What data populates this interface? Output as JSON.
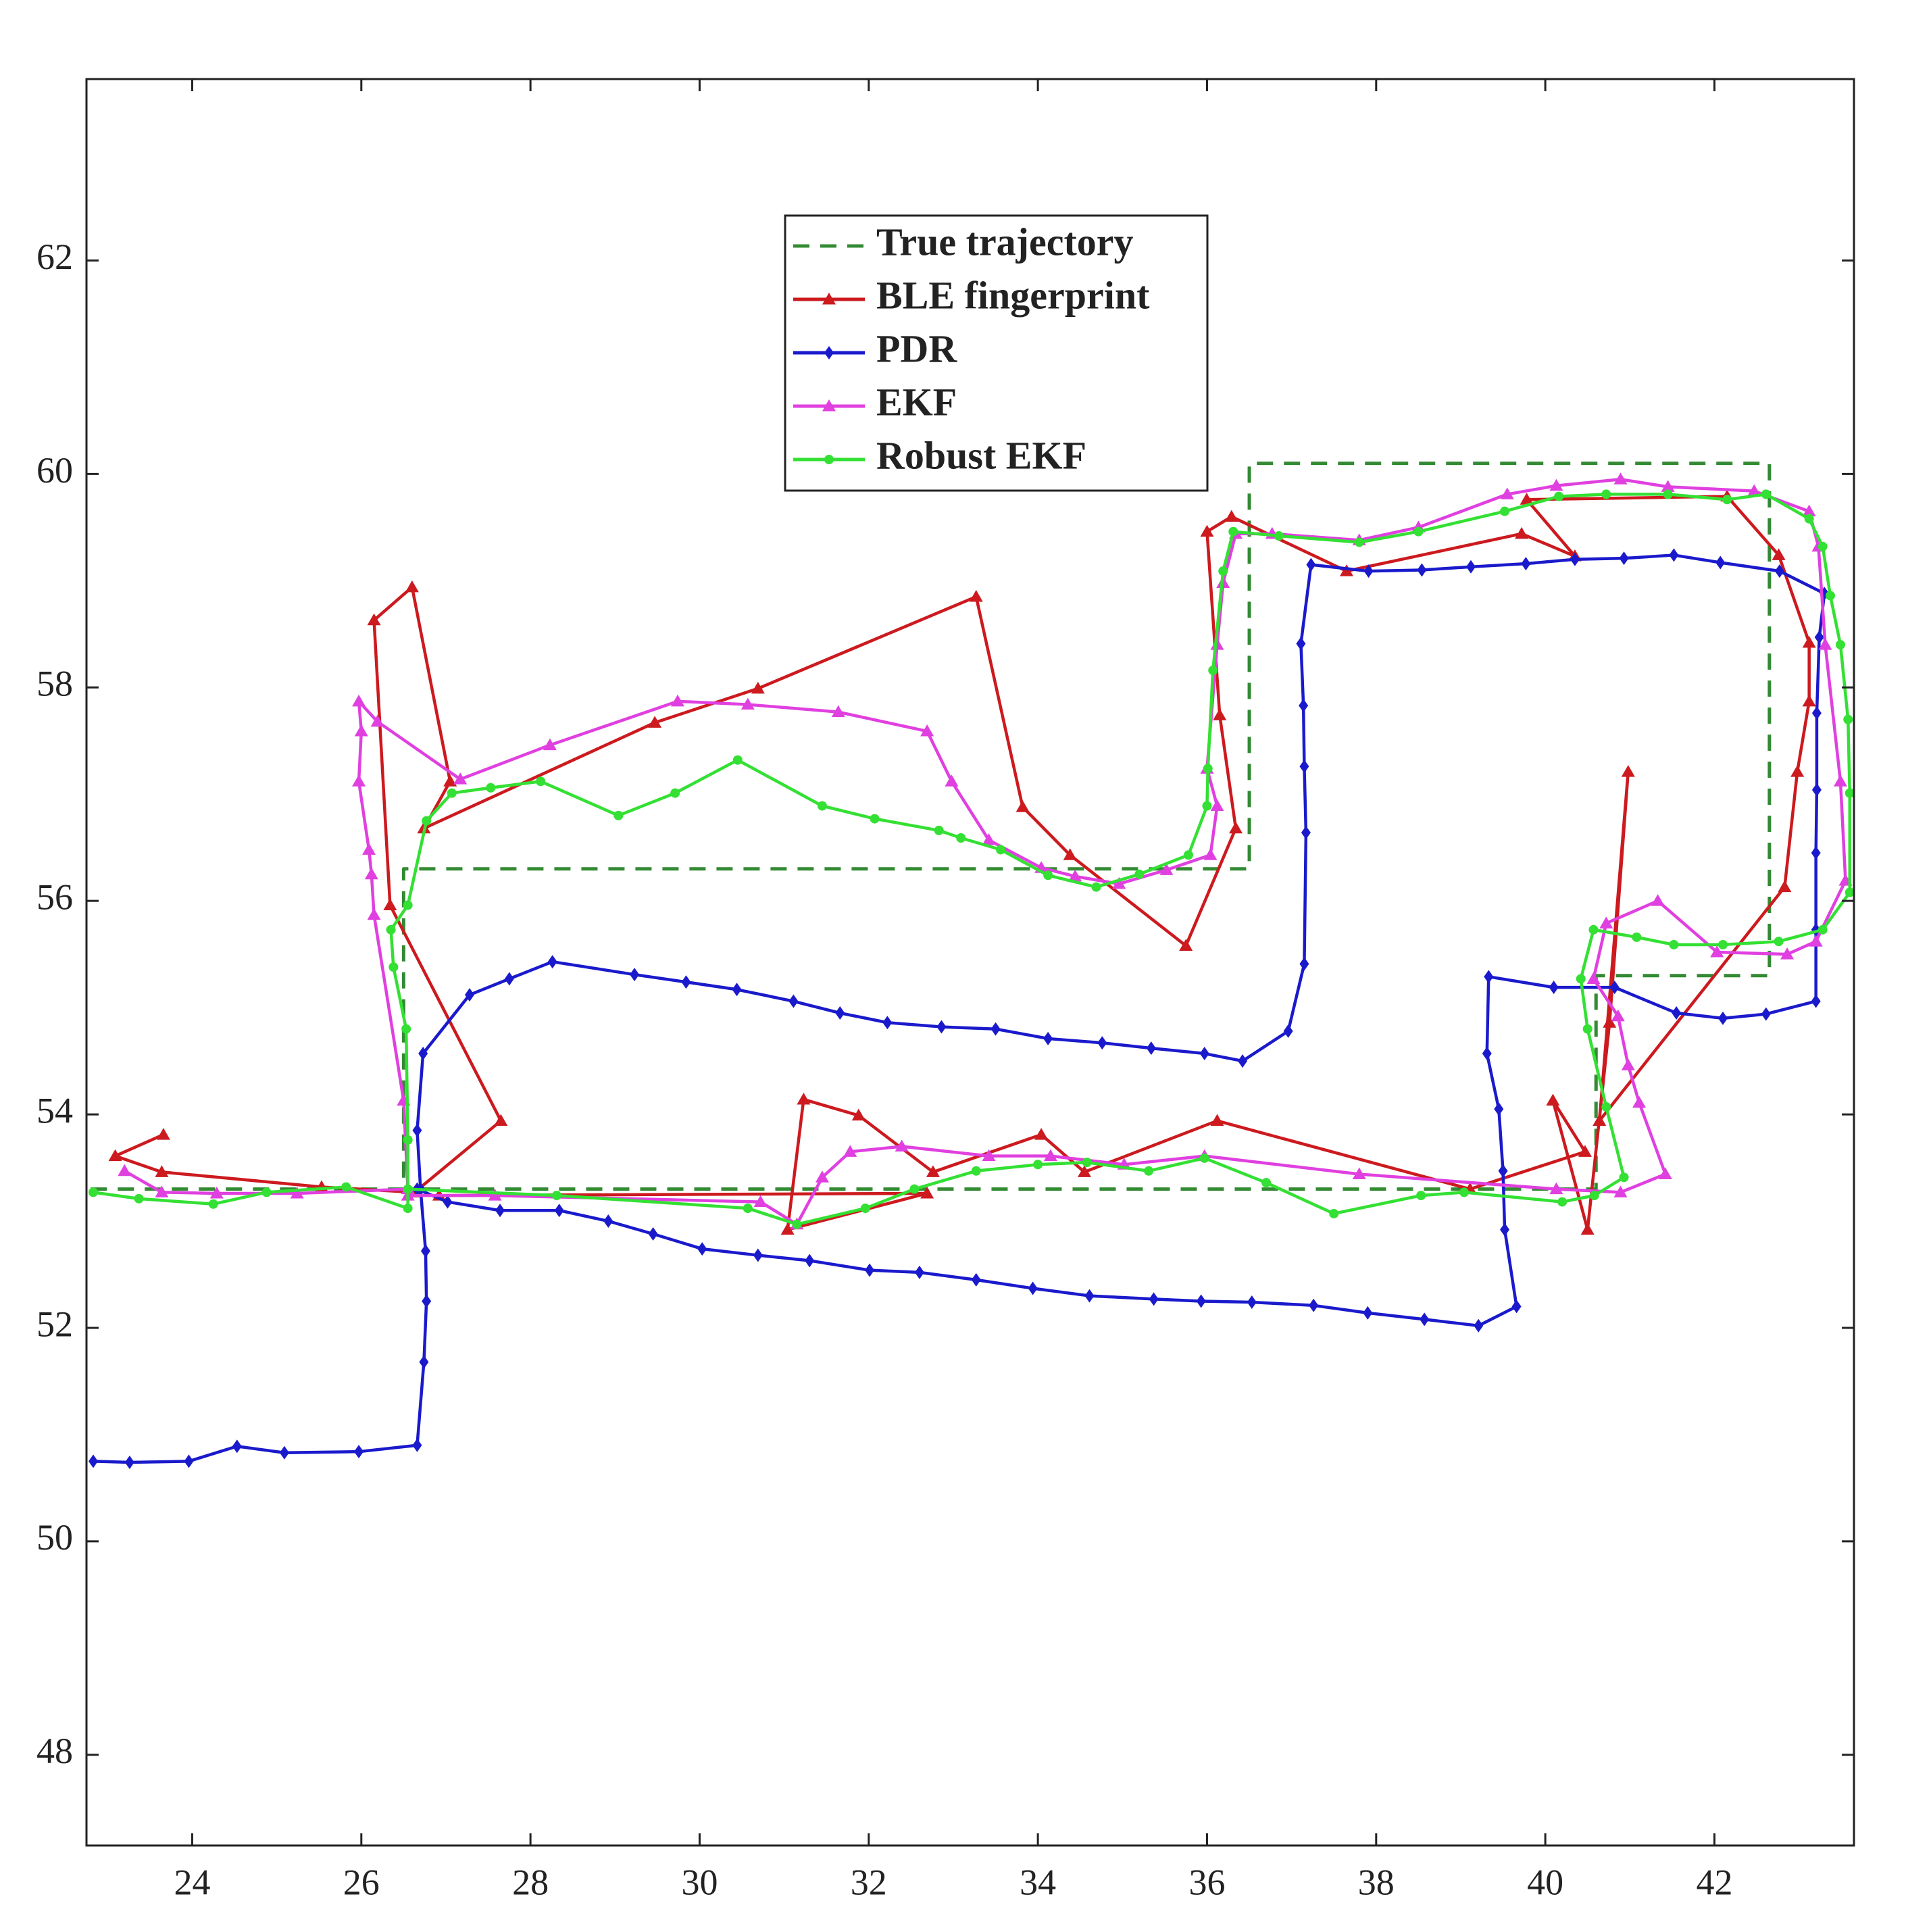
{
  "chart_data": {
    "type": "line",
    "xlim": [
      22.75,
      43.65
    ],
    "ylim": [
      47.15,
      63.7
    ],
    "xticks": [
      24,
      26,
      28,
      30,
      32,
      34,
      36,
      38,
      40,
      42
    ],
    "yticks": [
      48,
      50,
      52,
      54,
      56,
      58,
      60,
      62
    ],
    "grid": false,
    "legend": "upper center",
    "series": [
      {
        "name": "True trajectory",
        "color": "#338a33",
        "linestyle": "dashed",
        "marker": "none",
        "x": [
          22.8,
          26.5,
          26.5,
          36.5,
          36.5,
          42.65,
          42.65,
          40.6,
          40.6,
          26.5
        ],
        "values": [
          53.3,
          53.3,
          56.3,
          56.3,
          60.1,
          60.1,
          55.3,
          55.3,
          53.3,
          53.3
        ]
      },
      {
        "name": "BLE fingerprint",
        "color": "#cc1a1f",
        "linestyle": "solid",
        "marker": "triangle",
        "x": [
          23.66,
          23.09,
          23.64,
          25.53,
          26.63,
          27.65,
          26.34,
          26.15,
          26.6,
          27.05,
          26.74,
          29.47,
          30.69,
          33.27,
          33.82,
          34.38,
          35.75,
          36.34,
          36.15,
          36.0,
          36.29,
          37.65,
          39.72,
          40.35,
          39.78,
          42.15,
          42.76,
          43.12,
          43.12,
          42.98,
          42.83,
          40.64,
          40.98,
          40.76,
          40.5,
          40.09,
          40.47,
          39.11,
          36.12,
          34.55,
          34.04,
          32.76,
          31.88,
          31.23,
          31.04,
          32.69,
          26.92
        ],
        "values": [
          53.81,
          53.61,
          53.46,
          53.32,
          53.27,
          53.94,
          55.96,
          58.63,
          58.94,
          57.12,
          56.68,
          57.67,
          57.99,
          58.85,
          56.88,
          56.43,
          55.58,
          56.68,
          57.74,
          59.46,
          59.6,
          59.09,
          59.44,
          59.23,
          59.76,
          59.79,
          59.24,
          58.42,
          57.87,
          57.21,
          56.13,
          53.94,
          57.21,
          54.86,
          52.92,
          54.13,
          53.65,
          53.3,
          53.94,
          53.46,
          53.81,
          53.46,
          53.99,
          54.14,
          52.92,
          53.26,
          53.24
        ]
      },
      {
        "name": "PDR",
        "color": "#1a1acc",
        "linestyle": "solid",
        "marker": "diamond",
        "x": [
          22.83,
          23.26,
          23.96,
          24.53,
          25.09,
          25.97,
          26.66,
          26.74,
          26.77,
          26.76,
          26.7,
          26.66,
          26.73,
          27.28,
          27.75,
          28.26,
          29.23,
          29.84,
          30.44,
          31.11,
          31.66,
          32.22,
          32.86,
          33.5,
          34.12,
          34.76,
          35.34,
          35.97,
          36.42,
          36.96,
          37.15,
          37.17,
          37.15,
          37.14,
          37.11,
          37.23,
          37.91,
          38.54,
          39.12,
          39.77,
          40.35,
          40.93,
          41.52,
          42.07,
          42.77,
          43.3,
          43.24,
          43.21,
          43.21,
          43.2,
          43.2,
          43.2,
          42.61,
          42.1,
          41.55,
          40.82,
          40.1,
          39.33,
          39.31,
          39.45,
          39.5,
          39.52,
          39.66,
          39.21,
          38.57,
          37.9,
          37.26,
          36.53,
          35.93,
          35.37,
          34.61,
          33.94,
          33.27,
          32.6,
          32.01,
          31.3,
          30.69,
          30.03,
          29.45,
          28.92,
          28.34,
          27.64,
          27.02,
          26.66
        ],
        "values": [
          50.75,
          50.74,
          50.75,
          50.89,
          50.83,
          50.84,
          50.9,
          51.68,
          52.25,
          52.72,
          53.3,
          53.85,
          54.57,
          55.12,
          55.27,
          55.43,
          55.31,
          55.24,
          55.17,
          55.06,
          54.95,
          54.86,
          54.82,
          54.8,
          54.71,
          54.67,
          54.62,
          54.57,
          54.5,
          54.78,
          55.41,
          56.64,
          57.26,
          57.83,
          58.41,
          59.15,
          59.09,
          59.1,
          59.13,
          59.16,
          59.2,
          59.21,
          59.24,
          59.17,
          59.09,
          58.88,
          58.47,
          57.76,
          57.04,
          56.45,
          55.73,
          55.06,
          54.94,
          54.9,
          54.95,
          55.19,
          55.19,
          55.29,
          54.57,
          54.05,
          53.47,
          52.92,
          52.2,
          52.02,
          52.08,
          52.14,
          52.21,
          52.24,
          52.25,
          52.27,
          52.3,
          52.37,
          52.45,
          52.52,
          52.54,
          52.63,
          52.68,
          52.74,
          52.88,
          53.0,
          53.1,
          53.1,
          53.18,
          53.3
        ]
      },
      {
        "name": "EKF",
        "color": "#e040e0",
        "linestyle": "solid",
        "marker": "triangle",
        "x": [
          23.2,
          23.64,
          24.29,
          25.24,
          26.55,
          26.5,
          26.15,
          26.12,
          26.09,
          25.97,
          26.0,
          25.97,
          26.19,
          27.17,
          28.23,
          29.74,
          30.57,
          31.64,
          32.69,
          32.98,
          33.42,
          34.04,
          34.44,
          34.96,
          35.52,
          36.04,
          36.12,
          36.0,
          36.12,
          36.19,
          36.34,
          36.77,
          37.8,
          38.5,
          39.55,
          40.13,
          40.89,
          41.45,
          42.47,
          43.12,
          43.23,
          43.31,
          43.49,
          43.55,
          43.2,
          42.86,
          42.03,
          41.33,
          40.72,
          40.57,
          40.86,
          40.98,
          41.11,
          41.42,
          40.89,
          40.13,
          37.8,
          35.97,
          35.02,
          34.15,
          33.42,
          32.39,
          31.78,
          31.45,
          31.15,
          30.72,
          27.58,
          26.55
        ],
        "values": [
          53.47,
          53.27,
          53.26,
          53.26,
          53.3,
          54.13,
          55.87,
          56.25,
          56.48,
          57.12,
          57.59,
          57.87,
          57.68,
          57.14,
          57.46,
          57.87,
          57.84,
          57.77,
          57.59,
          57.12,
          56.57,
          56.31,
          56.23,
          56.16,
          56.29,
          56.43,
          56.89,
          57.24,
          58.4,
          58.98,
          59.44,
          59.44,
          59.38,
          59.5,
          59.81,
          59.89,
          59.95,
          59.88,
          59.84,
          59.65,
          59.32,
          58.4,
          57.12,
          56.19,
          55.62,
          55.5,
          55.52,
          56.0,
          55.79,
          55.27,
          54.92,
          54.46,
          54.11,
          53.44,
          53.27,
          53.3,
          53.44,
          53.61,
          53.53,
          53.61,
          53.61,
          53.7,
          53.65,
          53.41,
          52.97,
          53.18,
          53.24,
          53.24
        ]
      },
      {
        "name": "Robust EKF",
        "color": "#33e033",
        "linestyle": "solid",
        "marker": "circle",
        "x": [
          22.83,
          23.37,
          24.25,
          24.88,
          25.82,
          26.55,
          26.55,
          26.53,
          26.38,
          26.35,
          26.55,
          26.77,
          27.07,
          27.53,
          28.12,
          29.04,
          29.71,
          30.45,
          31.45,
          32.07,
          32.83,
          33.09,
          33.56,
          34.12,
          34.69,
          35.2,
          35.78,
          36.0,
          36.01,
          36.07,
          36.19,
          36.31,
          36.85,
          37.8,
          38.5,
          39.52,
          40.16,
          40.72,
          41.45,
          42.15,
          42.61,
          43.12,
          43.28,
          43.37,
          43.49,
          43.58,
          43.6,
          43.6,
          43.28,
          42.76,
          42.1,
          41.52,
          41.08,
          40.57,
          40.42,
          40.5,
          40.72,
          40.93,
          40.58,
          40.2,
          39.04,
          38.53,
          37.5,
          36.7,
          35.97,
          35.31,
          34.58,
          34.0,
          33.27,
          32.54,
          31.96,
          31.15,
          30.57,
          28.31,
          26.55
        ],
        "values": [
          53.27,
          53.21,
          53.16,
          53.27,
          53.32,
          53.12,
          53.76,
          54.8,
          55.38,
          55.73,
          55.96,
          56.75,
          57.01,
          57.06,
          57.12,
          56.8,
          57.01,
          57.32,
          56.89,
          56.77,
          56.66,
          56.59,
          56.48,
          56.24,
          56.13,
          56.25,
          56.43,
          56.89,
          57.24,
          58.16,
          59.09,
          59.46,
          59.42,
          59.36,
          59.46,
          59.65,
          59.79,
          59.81,
          59.81,
          59.76,
          59.81,
          59.58,
          59.32,
          58.86,
          58.4,
          57.7,
          57.01,
          56.08,
          55.73,
          55.62,
          55.59,
          55.59,
          55.66,
          55.73,
          55.27,
          54.8,
          54.07,
          53.41,
          53.24,
          53.18,
          53.27,
          53.24,
          53.07,
          53.36,
          53.59,
          53.47,
          53.55,
          53.53,
          53.47,
          53.3,
          53.12,
          52.97,
          53.12,
          53.24,
          53.3
        ]
      }
    ]
  }
}
